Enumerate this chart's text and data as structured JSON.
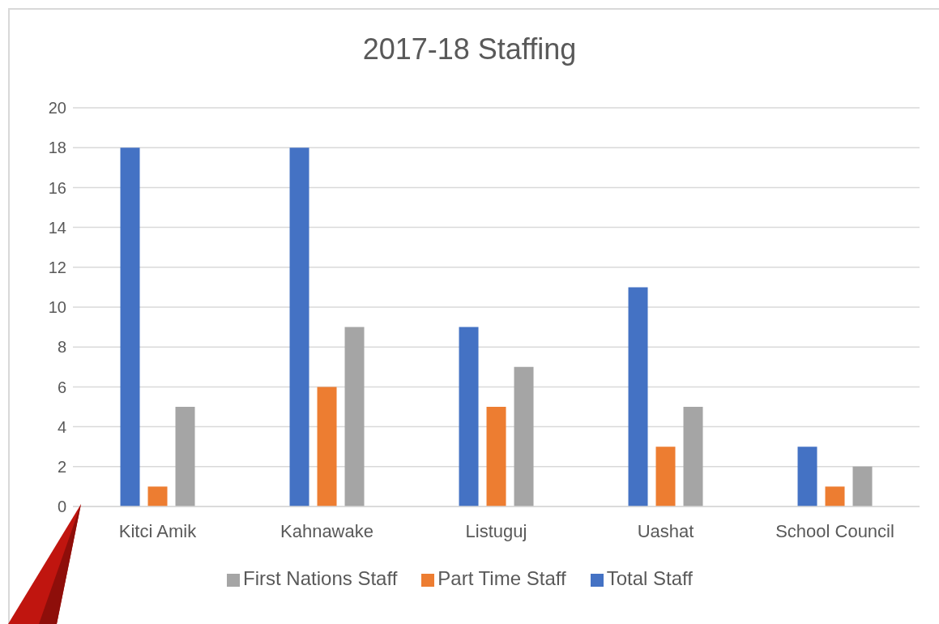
{
  "chart_data": {
    "type": "bar",
    "title": "2017-18 Staffing",
    "categories": [
      "Kitci Amik",
      "Kahnawake",
      "Listuguj",
      "Uashat",
      "School Council"
    ],
    "series": [
      {
        "name": "Total Staff",
        "color": "#4472c4",
        "values": [
          18,
          18,
          9,
          11,
          3
        ]
      },
      {
        "name": "Part Time Staff",
        "color": "#ed7d31",
        "values": [
          1,
          6,
          5,
          3,
          1
        ]
      },
      {
        "name": "First Nations Staff",
        "color": "#a5a5a5",
        "values": [
          5,
          9,
          7,
          5,
          2
        ]
      }
    ],
    "ylim": [
      0,
      20
    ],
    "yticks": [
      0,
      2,
      4,
      6,
      8,
      10,
      12,
      14,
      16,
      18,
      20
    ],
    "grid": "y",
    "legend": "bottom"
  }
}
